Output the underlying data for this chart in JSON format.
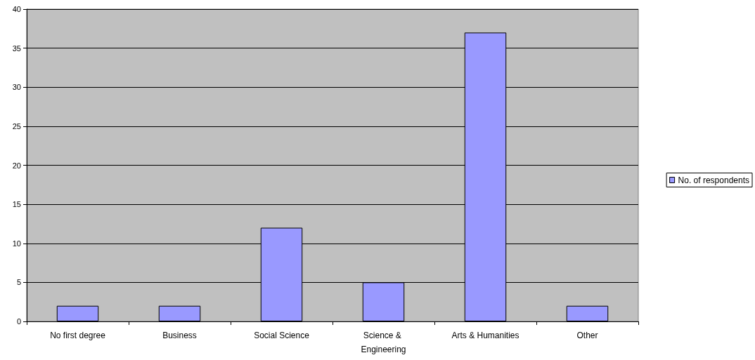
{
  "chart_data": {
    "type": "bar",
    "categories": [
      "No first degree",
      "Business",
      "Social Science",
      "Science & Engineering",
      "Arts & Humanities",
      "Other"
    ],
    "series": [
      {
        "name": "No. of respondents",
        "color": "#9999ff",
        "values": [
          2,
          2,
          12,
          5,
          37,
          2
        ]
      }
    ],
    "ylim": [
      0,
      40
    ],
    "yticks": [
      0,
      5,
      10,
      15,
      20,
      25,
      30,
      35,
      40
    ],
    "grid": "y",
    "legend": "right"
  }
}
